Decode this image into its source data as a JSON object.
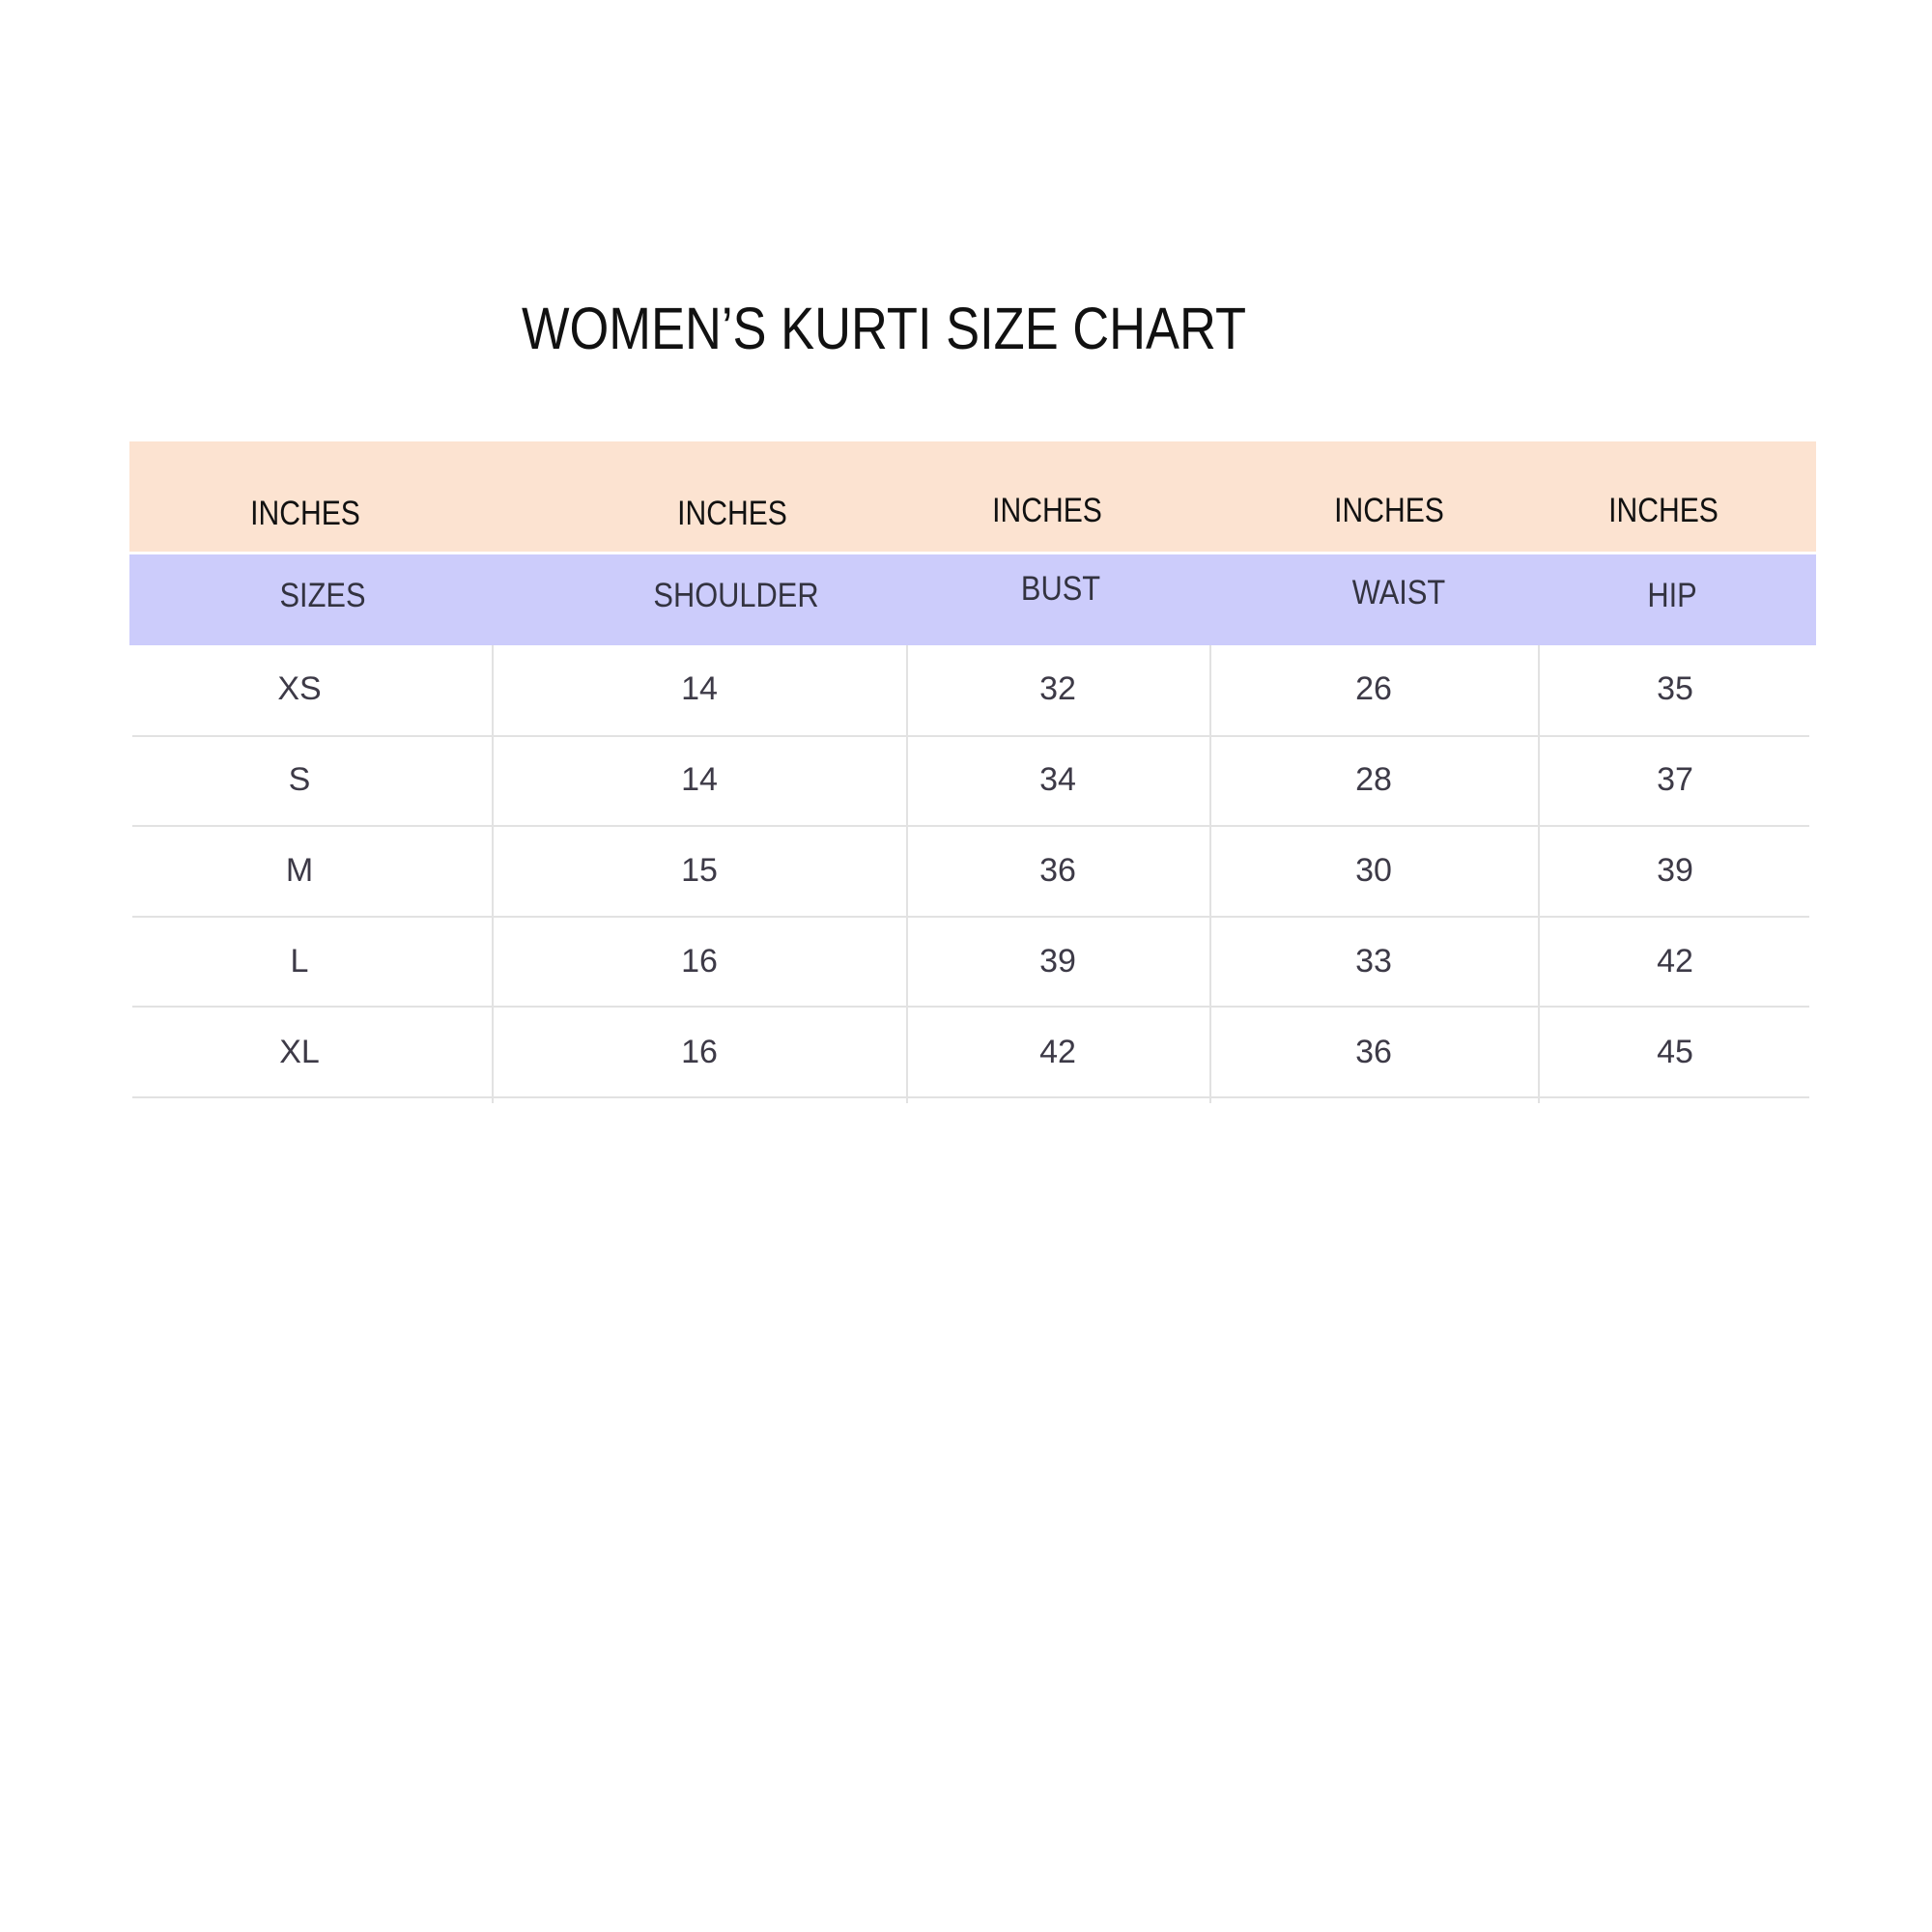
{
  "title": "WOMEN’S KURTI SIZE CHART",
  "units": [
    "INCHES",
    "INCHES",
    "INCHES",
    "INCHES",
    "INCHES"
  ],
  "headers": [
    "SIZES",
    "SHOULDER",
    "BUST",
    "WAIST",
    "HIP"
  ],
  "rows": [
    [
      "XS",
      "14",
      "32",
      "26",
      "35"
    ],
    [
      "S",
      "14",
      "34",
      "28",
      "37"
    ],
    [
      "M",
      "15",
      "36",
      "30",
      "39"
    ],
    [
      "L",
      "16",
      "39",
      "33",
      "42"
    ],
    [
      "XL",
      "16",
      "42",
      "36",
      "45"
    ]
  ],
  "colors": {
    "unit_band": "#fce3d1",
    "header_band": "#ccccfb",
    "grid": "#e2e2e2"
  }
}
